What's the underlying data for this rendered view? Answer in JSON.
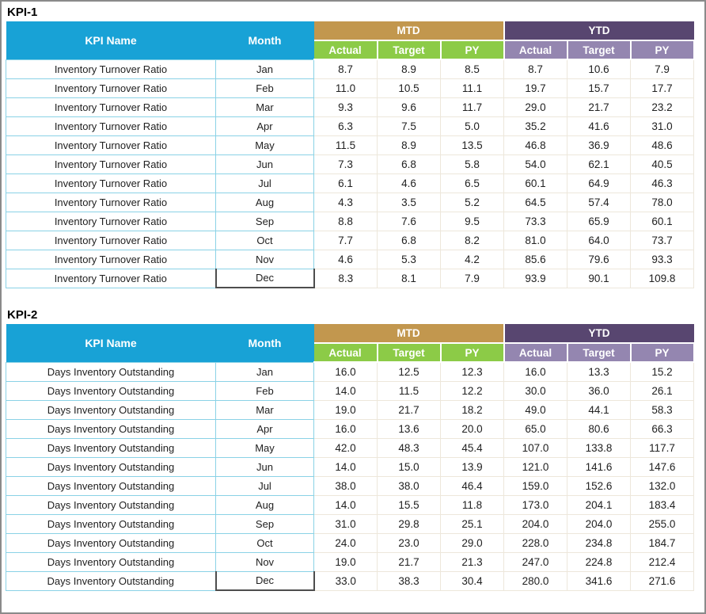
{
  "header_labels": {
    "kpi_name": "KPI Name",
    "month": "Month",
    "mtd": "MTD",
    "ytd": "YTD",
    "sub_columns": [
      "Actual",
      "Target",
      "PY"
    ]
  },
  "colors": {
    "header_blue": "#18a2d6",
    "mtd_group_tan": "#c2974e",
    "ytd_group_purple": "#584670",
    "mtd_sub_green": "#8ccb47",
    "ytd_sub_purple": "#9486b0",
    "name_cell_border": "#8ad2e6",
    "value_cell_border": "#ede7db",
    "selected_cell_border": "#4d4d4d",
    "frame_border": "#8a8a8a"
  },
  "tables": [
    {
      "title": "KPI-1",
      "kpi_name": "Inventory Turnover Ratio",
      "rows": [
        {
          "month": "Jan",
          "mtd": [
            "8.7",
            "8.9",
            "8.5"
          ],
          "ytd": [
            "8.7",
            "10.6",
            "7.9"
          ]
        },
        {
          "month": "Feb",
          "mtd": [
            "11.0",
            "10.5",
            "11.1"
          ],
          "ytd": [
            "19.7",
            "15.7",
            "17.7"
          ]
        },
        {
          "month": "Mar",
          "mtd": [
            "9.3",
            "9.6",
            "11.7"
          ],
          "ytd": [
            "29.0",
            "21.7",
            "23.2"
          ]
        },
        {
          "month": "Apr",
          "mtd": [
            "6.3",
            "7.5",
            "5.0"
          ],
          "ytd": [
            "35.2",
            "41.6",
            "31.0"
          ]
        },
        {
          "month": "May",
          "mtd": [
            "11.5",
            "8.9",
            "13.5"
          ],
          "ytd": [
            "46.8",
            "36.9",
            "48.6"
          ]
        },
        {
          "month": "Jun",
          "mtd": [
            "7.3",
            "6.8",
            "5.8"
          ],
          "ytd": [
            "54.0",
            "62.1",
            "40.5"
          ]
        },
        {
          "month": "Jul",
          "mtd": [
            "6.1",
            "4.6",
            "6.5"
          ],
          "ytd": [
            "60.1",
            "64.9",
            "46.3"
          ]
        },
        {
          "month": "Aug",
          "mtd": [
            "4.3",
            "3.5",
            "5.2"
          ],
          "ytd": [
            "64.5",
            "57.4",
            "78.0"
          ]
        },
        {
          "month": "Sep",
          "mtd": [
            "8.8",
            "7.6",
            "9.5"
          ],
          "ytd": [
            "73.3",
            "65.9",
            "60.1"
          ]
        },
        {
          "month": "Oct",
          "mtd": [
            "7.7",
            "6.8",
            "8.2"
          ],
          "ytd": [
            "81.0",
            "64.0",
            "73.7"
          ]
        },
        {
          "month": "Nov",
          "mtd": [
            "4.6",
            "5.3",
            "4.2"
          ],
          "ytd": [
            "85.6",
            "79.6",
            "93.3"
          ]
        },
        {
          "month": "Dec",
          "mtd": [
            "8.3",
            "8.1",
            "7.9"
          ],
          "ytd": [
            "93.9",
            "90.1",
            "109.8"
          ]
        }
      ]
    },
    {
      "title": "KPI-2",
      "kpi_name": "Days Inventory Outstanding",
      "rows": [
        {
          "month": "Jan",
          "mtd": [
            "16.0",
            "12.5",
            "12.3"
          ],
          "ytd": [
            "16.0",
            "13.3",
            "15.2"
          ]
        },
        {
          "month": "Feb",
          "mtd": [
            "14.0",
            "11.5",
            "12.2"
          ],
          "ytd": [
            "30.0",
            "36.0",
            "26.1"
          ]
        },
        {
          "month": "Mar",
          "mtd": [
            "19.0",
            "21.7",
            "18.2"
          ],
          "ytd": [
            "49.0",
            "44.1",
            "58.3"
          ]
        },
        {
          "month": "Apr",
          "mtd": [
            "16.0",
            "13.6",
            "20.0"
          ],
          "ytd": [
            "65.0",
            "80.6",
            "66.3"
          ]
        },
        {
          "month": "May",
          "mtd": [
            "42.0",
            "48.3",
            "45.4"
          ],
          "ytd": [
            "107.0",
            "133.8",
            "117.7"
          ]
        },
        {
          "month": "Jun",
          "mtd": [
            "14.0",
            "15.0",
            "13.9"
          ],
          "ytd": [
            "121.0",
            "141.6",
            "147.6"
          ]
        },
        {
          "month": "Jul",
          "mtd": [
            "38.0",
            "38.0",
            "46.4"
          ],
          "ytd": [
            "159.0",
            "152.6",
            "132.0"
          ]
        },
        {
          "month": "Aug",
          "mtd": [
            "14.0",
            "15.5",
            "11.8"
          ],
          "ytd": [
            "173.0",
            "204.1",
            "183.4"
          ]
        },
        {
          "month": "Sep",
          "mtd": [
            "31.0",
            "29.8",
            "25.1"
          ],
          "ytd": [
            "204.0",
            "204.0",
            "255.0"
          ]
        },
        {
          "month": "Oct",
          "mtd": [
            "24.0",
            "23.0",
            "29.0"
          ],
          "ytd": [
            "228.0",
            "234.8",
            "184.7"
          ]
        },
        {
          "month": "Nov",
          "mtd": [
            "19.0",
            "21.7",
            "21.3"
          ],
          "ytd": [
            "247.0",
            "224.8",
            "212.4"
          ]
        },
        {
          "month": "Dec",
          "mtd": [
            "33.0",
            "38.3",
            "30.4"
          ],
          "ytd": [
            "280.0",
            "341.6",
            "271.6"
          ]
        }
      ]
    }
  ]
}
